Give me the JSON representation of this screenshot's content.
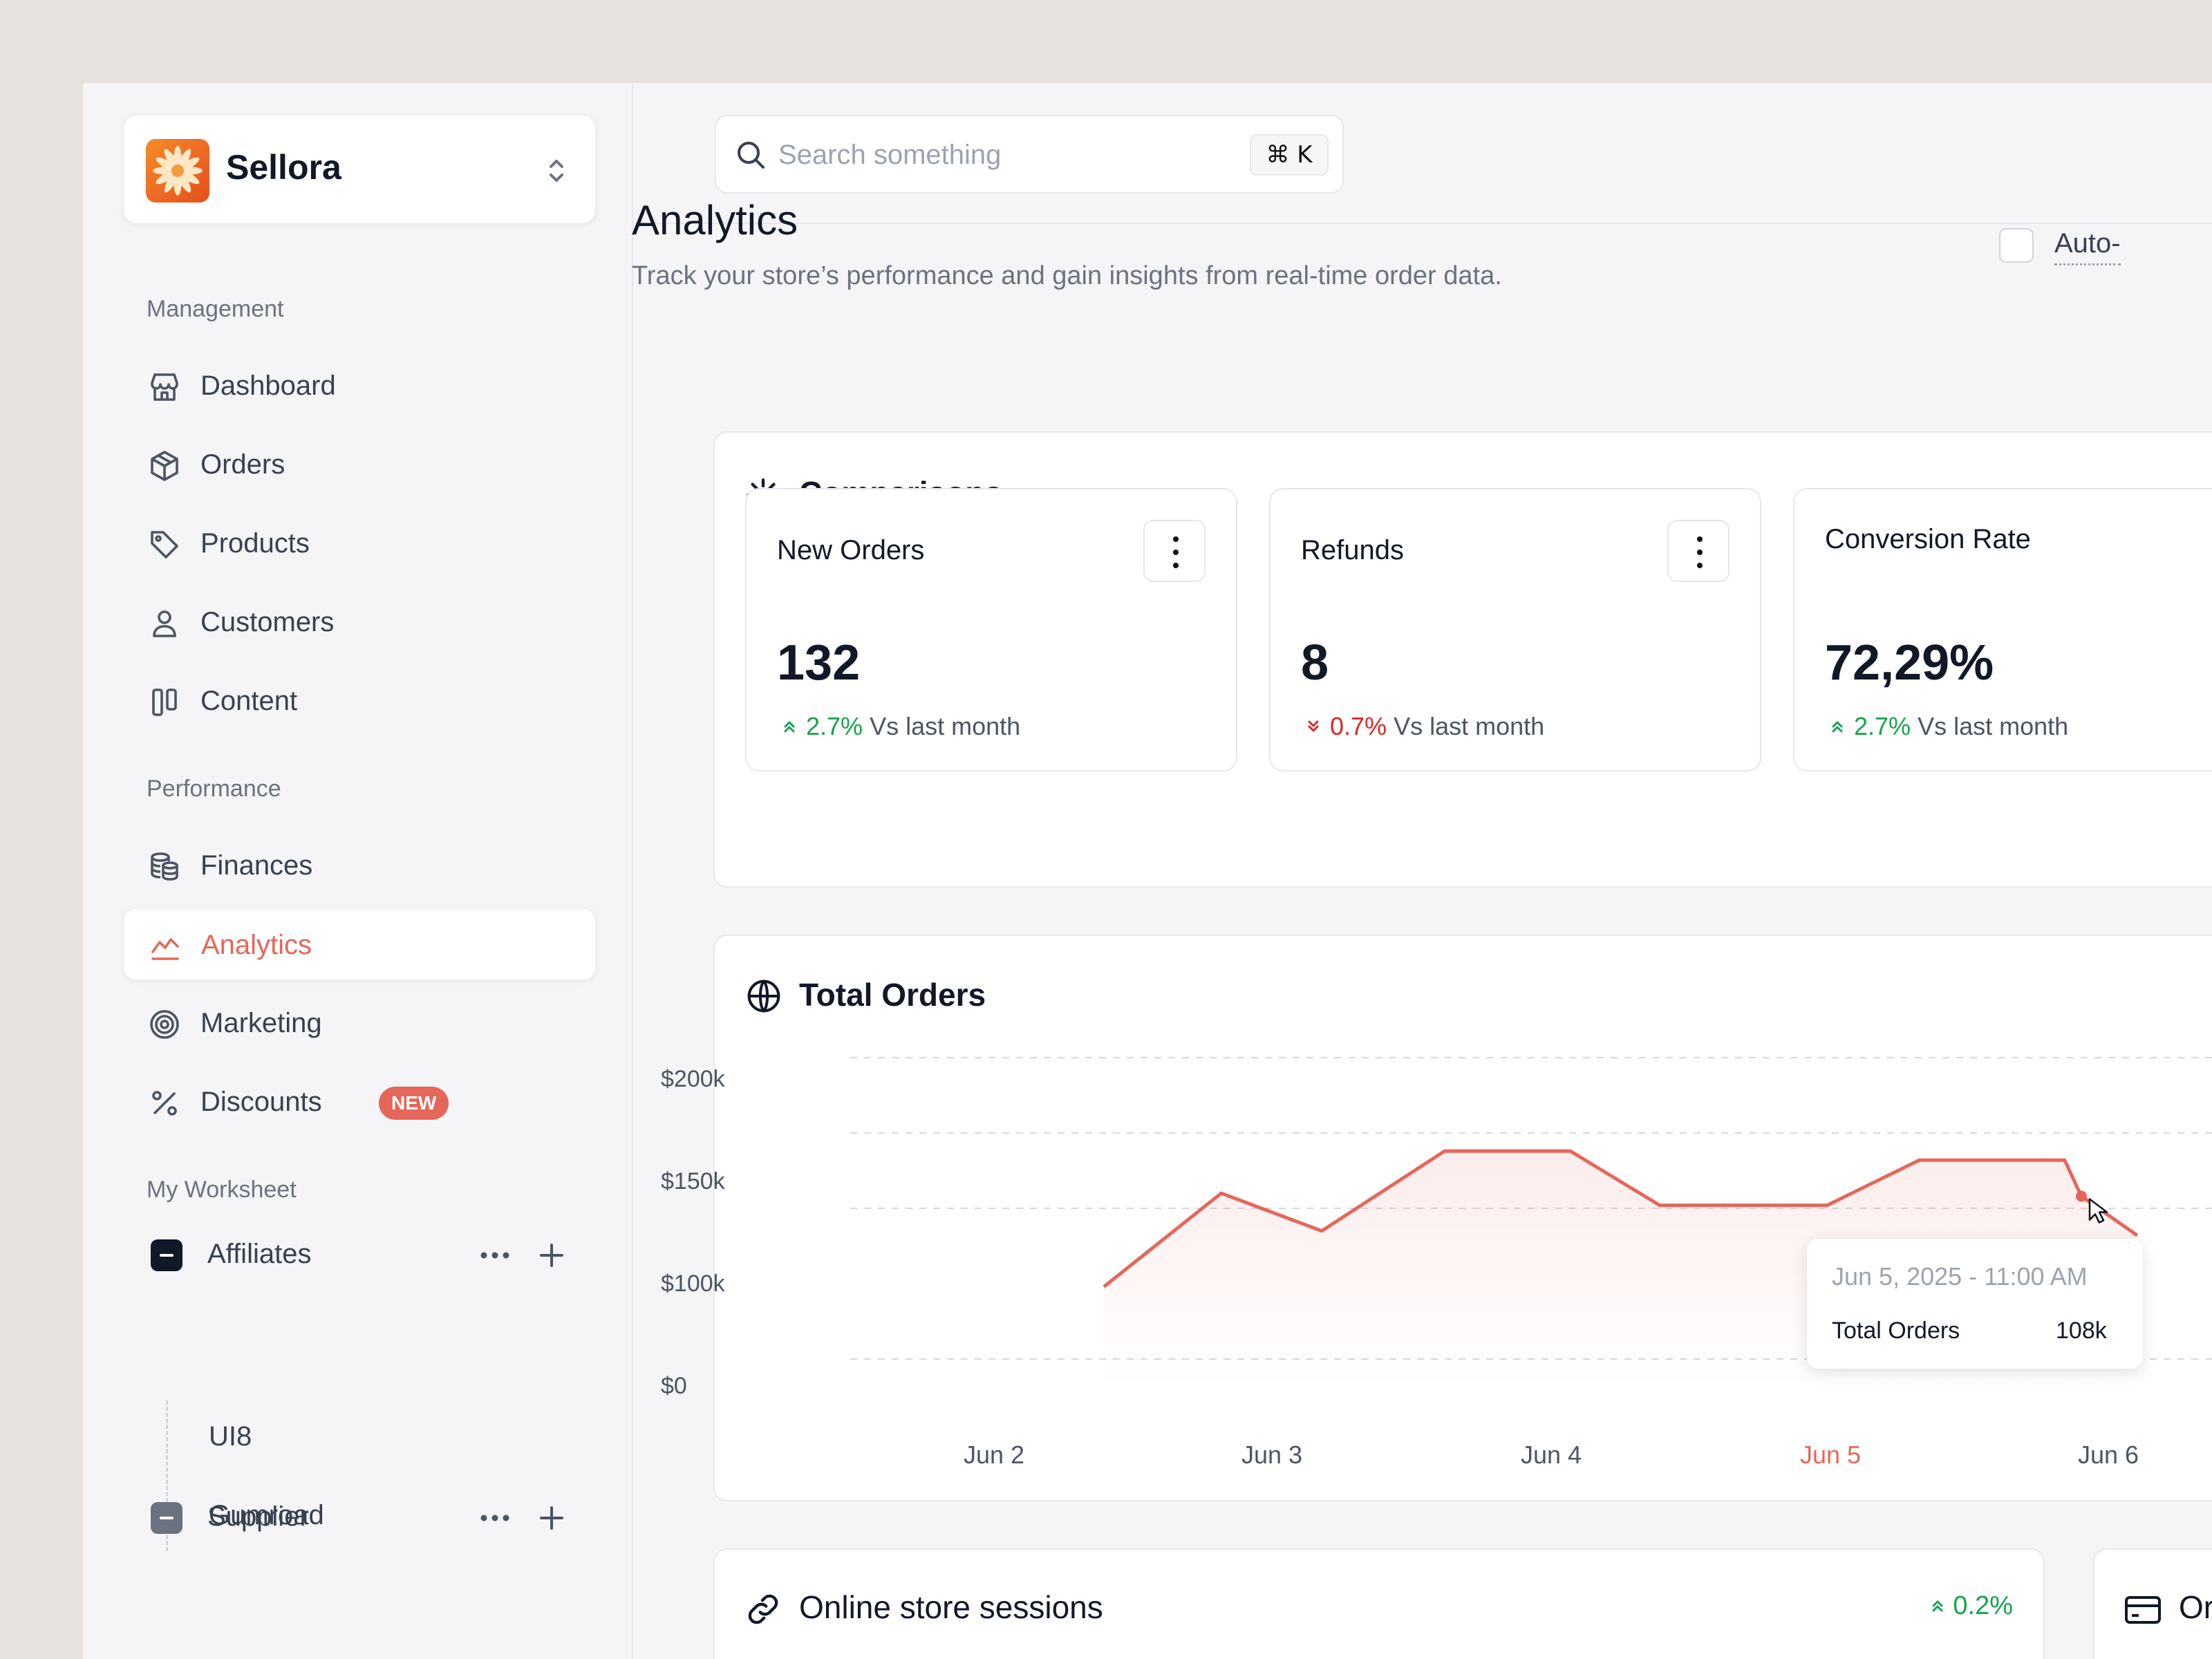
{
  "brand": {
    "name": "Sellora"
  },
  "sidebar": {
    "management_label": "Management",
    "management": [
      {
        "label": "Dashboard",
        "icon": "store-icon"
      },
      {
        "label": "Orders",
        "icon": "package-icon"
      },
      {
        "label": "Products",
        "icon": "tag-icon"
      },
      {
        "label": "Customers",
        "icon": "user-icon"
      },
      {
        "label": "Content",
        "icon": "columns-icon"
      }
    ],
    "performance_label": "Performance",
    "performance": [
      {
        "label": "Finances",
        "icon": "coins-icon"
      },
      {
        "label": "Analytics",
        "icon": "chart-line-icon",
        "active": true
      },
      {
        "label": "Marketing",
        "icon": "target-icon"
      },
      {
        "label": "Discounts",
        "icon": "percent-icon",
        "badge": "NEW"
      }
    ],
    "worksheet_label": "My Worksheet",
    "worksheets": [
      {
        "label": "Affiliates",
        "color": "#111827",
        "children": [
          "UI8",
          "Gumroad"
        ]
      },
      {
        "label": "Supplier",
        "color": "#6b7280",
        "children": []
      }
    ]
  },
  "search": {
    "placeholder": "Search something",
    "shortcut": "⌘ K"
  },
  "page": {
    "title": "Analytics",
    "subtitle": "Track your store’s performance and gain insights from real-time order data.",
    "auto_label": "Auto-"
  },
  "comparisons": {
    "title": "Comparisons",
    "stats": [
      {
        "name": "New Orders",
        "value": "132",
        "delta": "2.7%",
        "direction": "up",
        "suffix": "Vs last month"
      },
      {
        "name": "Refunds",
        "value": "8",
        "delta": "0.7%",
        "direction": "down",
        "suffix": "Vs last month"
      },
      {
        "name": "Conversion Rate",
        "value": "72,29%",
        "delta": "2.7%",
        "direction": "up",
        "suffix": "Vs last month"
      }
    ]
  },
  "total_orders": {
    "title": "Total Orders",
    "tooltip": {
      "date": "Jun 5, 2025 - 11:00 AM",
      "label": "Total Orders",
      "value": "108k"
    }
  },
  "chart_data": {
    "type": "area",
    "title": "Total Orders",
    "y_ticks": [
      "$200k",
      "$150k",
      "$100k",
      "$0"
    ],
    "ylim": [
      0,
      200000
    ],
    "x_ticks": [
      "Jun 2",
      "Jun 3",
      "Jun 4",
      "Jun 5",
      "Jun 6"
    ],
    "highlight_tick": "Jun 5",
    "grid": true,
    "line_color": "#e5675a",
    "x": [
      1.5,
      1.92,
      2.28,
      2.72,
      3.17,
      3.49,
      4.09,
      4.42,
      4.94,
      5.0,
      5.2
    ],
    "y": [
      48000,
      110000,
      85000,
      138000,
      138000,
      102000,
      102000,
      132000,
      132000,
      108000,
      82000
    ]
  },
  "sessions": {
    "title": "Online store sessions",
    "delta": "0.2%",
    "next_card_title": "Or"
  },
  "colors": {
    "accent": "#e5675a",
    "positive": "#16a34a",
    "negative": "#dc2626"
  }
}
